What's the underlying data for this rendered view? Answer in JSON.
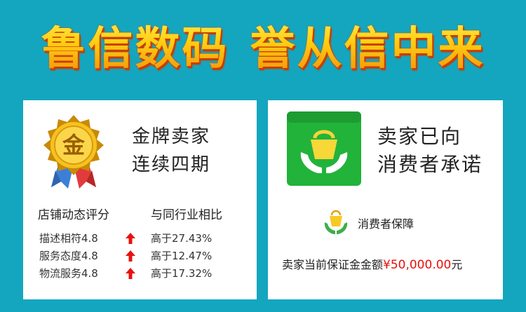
{
  "banner": {
    "part1": "鲁信数码",
    "part2": "誉从信中来"
  },
  "seller_badge": {
    "medal_char": "金",
    "line1": "金牌卖家",
    "line2": "连续四期"
  },
  "ratings": {
    "header_left": "店铺动态评分",
    "header_right": "与同行业相比",
    "rows": [
      {
        "label": "描述相符4.8",
        "compare": "高于27.43%"
      },
      {
        "label": "服务态度4.8",
        "compare": "高于12.47%"
      },
      {
        "label": "物流服务4.8",
        "compare": "高于17.32%"
      }
    ]
  },
  "promise": {
    "line1": "卖家已向",
    "line2": "消费者承诺"
  },
  "guarantee": {
    "label": "消费者保障",
    "deposit_prefix": "卖家当前保证金金额",
    "deposit_amount": "¥50,000.00",
    "deposit_unit": "元"
  },
  "colors": {
    "background": "#14a6bf",
    "title_yellow": "#ffd21a",
    "up_arrow": "#e8110d",
    "bag_green": "#22b33a"
  },
  "icons": [
    "gold-medal-icon",
    "up-arrow-icon",
    "shopping-bag-hands-icon",
    "consumer-guarantee-icon"
  ]
}
